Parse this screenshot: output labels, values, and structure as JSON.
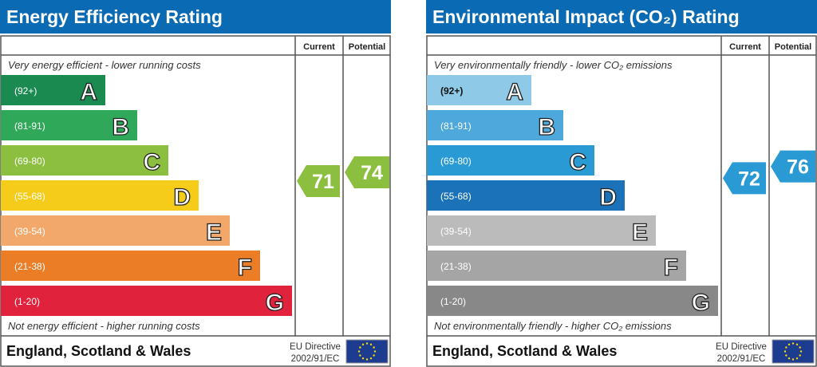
{
  "chart_data": [
    {
      "type": "bar",
      "title": "Energy Efficiency Rating",
      "column_headers": [
        "Current",
        "Potential"
      ],
      "top_note": "Very energy efficient - lower running costs",
      "bottom_note": "Not energy efficient - higher running costs",
      "bands": [
        {
          "letter": "A",
          "range": "(92+)",
          "color": "#1a8a50"
        },
        {
          "letter": "B",
          "range": "(81-91)",
          "color": "#2fa85a"
        },
        {
          "letter": "C",
          "range": "(69-80)",
          "color": "#8cbf3f"
        },
        {
          "letter": "D",
          "range": "(55-68)",
          "color": "#f5cc1a"
        },
        {
          "letter": "E",
          "range": "(39-54)",
          "color": "#f2a86b"
        },
        {
          "letter": "F",
          "range": "(21-38)",
          "color": "#ea7d26"
        },
        {
          "letter": "G",
          "range": "(1-20)",
          "color": "#e0223c"
        }
      ],
      "current": {
        "value": "71",
        "color": "#8cbf3f"
      },
      "potential": {
        "value": "74",
        "color": "#8cbf3f"
      },
      "footer": {
        "region": "England, Scotland & Wales",
        "directive_line1": "EU Directive",
        "directive_line2": "2002/91/EC"
      }
    },
    {
      "type": "bar",
      "title": "Environmental Impact (CO2) Rating",
      "column_headers": [
        "Current",
        "Potential"
      ],
      "top_note": "Very environmentally friendly - lower CO2 emissions",
      "bottom_note": "Not environmentally friendly - higher CO2 emissions",
      "bands": [
        {
          "letter": "A",
          "range": "(92+)",
          "color": "#8ecae8"
        },
        {
          "letter": "B",
          "range": "(81-91)",
          "color": "#4ea8dc"
        },
        {
          "letter": "C",
          "range": "(69-80)",
          "color": "#2a9ad4"
        },
        {
          "letter": "D",
          "range": "(55-68)",
          "color": "#1b72b8"
        },
        {
          "letter": "E",
          "range": "(39-54)",
          "color": "#bbbbbb"
        },
        {
          "letter": "F",
          "range": "(21-38)",
          "color": "#a5a5a5"
        },
        {
          "letter": "G",
          "range": "(1-20)",
          "color": "#888888"
        }
      ],
      "current": {
        "value": "72",
        "color": "#2a9ad4"
      },
      "potential": {
        "value": "76",
        "color": "#2a9ad4"
      },
      "footer": {
        "region": "England, Scotland & Wales",
        "directive_line1": "EU Directive",
        "directive_line2": "2002/91/EC"
      }
    }
  ],
  "colors": {
    "header_blue": "#0a6ab3",
    "eu_flag": "#1d3c8f",
    "eu_stars": "#ffdd00"
  }
}
